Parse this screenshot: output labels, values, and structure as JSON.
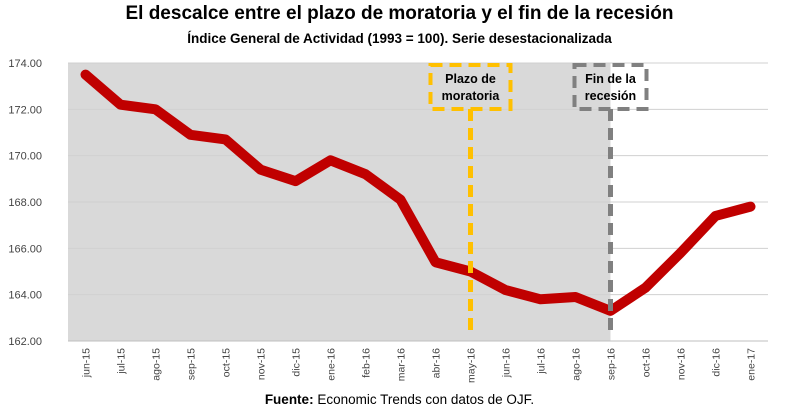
{
  "chart_data": {
    "type": "line",
    "title": "El descalce entre el plazo de moratoria y el fin de la recesión",
    "subtitle": "Índice General de Actividad (1993 = 100). Serie desestacionalizada",
    "xlabel": "",
    "ylabel": "",
    "categories": [
      "jun-15",
      "jul-15",
      "ago-15",
      "sep-15",
      "oct-15",
      "nov-15",
      "dic-15",
      "ene-16",
      "feb-16",
      "mar-16",
      "abr-16",
      "may-16",
      "jun-16",
      "jul-16",
      "ago-16",
      "sep-16",
      "oct-16",
      "nov-16",
      "dic-16",
      "ene-17"
    ],
    "y_tick_labels": [
      "162.00",
      "164.00",
      "166.00",
      "168.00",
      "170.00",
      "172.00",
      "174.00"
    ],
    "ylim": [
      162,
      174
    ],
    "grid": true,
    "series": [
      {
        "name": "Índice General de Actividad",
        "color": "#c00000",
        "values": [
          173.5,
          172.2,
          172.0,
          170.9,
          170.7,
          169.4,
          168.9,
          169.8,
          169.2,
          168.1,
          165.4,
          165.0,
          164.2,
          163.8,
          163.9,
          163.3,
          164.3,
          165.8,
          167.4,
          167.8
        ]
      }
    ],
    "shaded_region": {
      "from": "jun-15",
      "to": "sep-16",
      "color": "#d9d9d9"
    },
    "annotations": [
      {
        "lines": [
          "Plazo de",
          "moratoria"
        ],
        "at": "may-16",
        "color": "#ffc000"
      },
      {
        "lines": [
          "Fin de la",
          "recesión"
        ],
        "at": "sep-16",
        "color": "#808080"
      }
    ]
  },
  "source": {
    "label": "Fuente:",
    "text": " Economic Trends con datos de OJF."
  }
}
